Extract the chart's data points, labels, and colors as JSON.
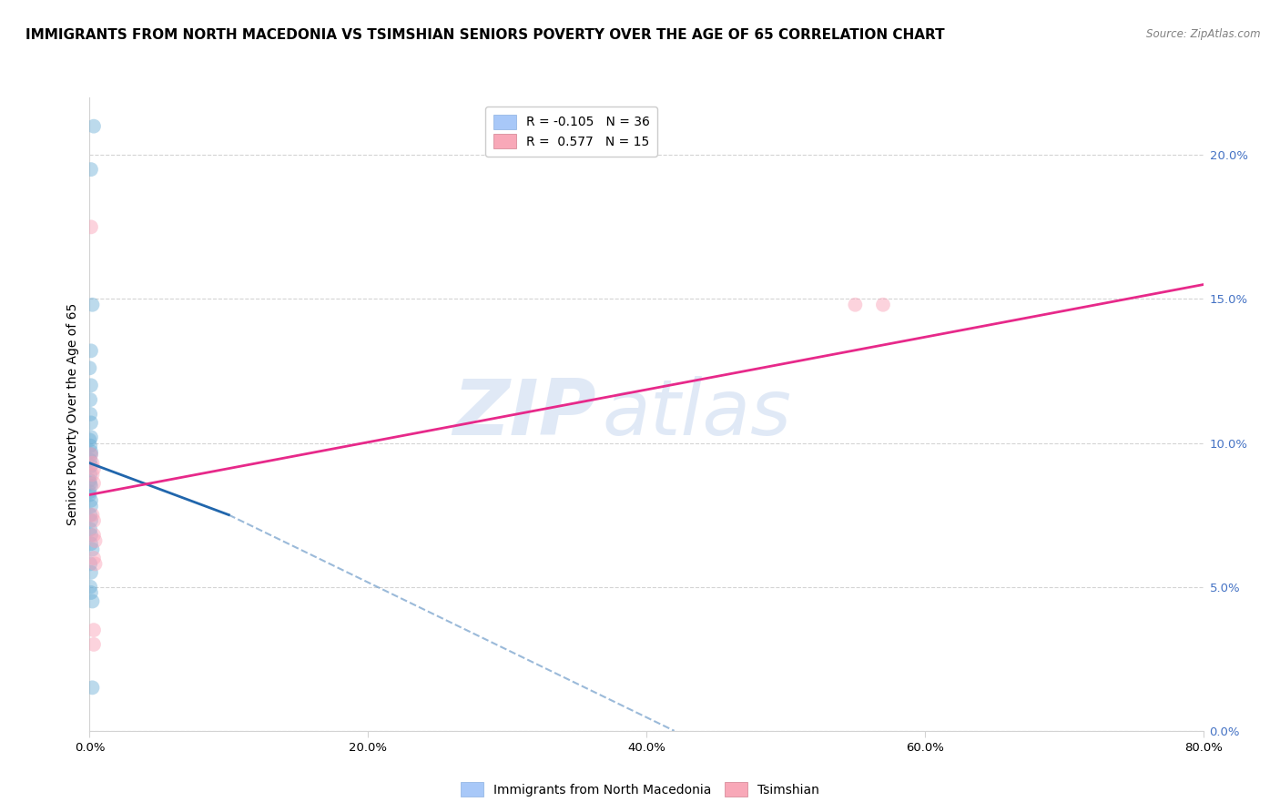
{
  "title": "IMMIGRANTS FROM NORTH MACEDONIA VS TSIMSHIAN SENIORS POVERTY OVER THE AGE OF 65 CORRELATION CHART",
  "source": "Source: ZipAtlas.com",
  "ylabel_label": "Seniors Poverty Over the Age of 65",
  "xlim": [
    0.0,
    0.8
  ],
  "ylim": [
    0.0,
    0.22
  ],
  "plot_ylim": [
    0.0,
    0.22
  ],
  "watermark_zip": "ZIP",
  "watermark_atlas": "atlas",
  "blue_scatter": [
    [
      0.003,
      0.21
    ],
    [
      0.001,
      0.195
    ],
    [
      0.002,
      0.148
    ],
    [
      0.001,
      0.132
    ],
    [
      0.0,
      0.126
    ],
    [
      0.001,
      0.12
    ],
    [
      0.0005,
      0.115
    ],
    [
      0.0005,
      0.11
    ],
    [
      0.001,
      0.107
    ],
    [
      0.001,
      0.102
    ],
    [
      0.0,
      0.101
    ],
    [
      0.0005,
      0.099
    ],
    [
      0.001,
      0.097
    ],
    [
      0.001,
      0.096
    ],
    [
      0.0005,
      0.094
    ],
    [
      0.001,
      0.092
    ],
    [
      0.0005,
      0.089
    ],
    [
      0.0,
      0.087
    ],
    [
      0.0005,
      0.086
    ],
    [
      0.001,
      0.085
    ],
    [
      0.0,
      0.083
    ],
    [
      0.0,
      0.082
    ],
    [
      0.001,
      0.08
    ],
    [
      0.001,
      0.078
    ],
    [
      0.0005,
      0.075
    ],
    [
      0.001,
      0.073
    ],
    [
      0.0005,
      0.07
    ],
    [
      0.001,
      0.068
    ],
    [
      0.001,
      0.065
    ],
    [
      0.002,
      0.063
    ],
    [
      0.0005,
      0.058
    ],
    [
      0.001,
      0.055
    ],
    [
      0.0005,
      0.05
    ],
    [
      0.001,
      0.048
    ],
    [
      0.002,
      0.045
    ],
    [
      0.002,
      0.015
    ]
  ],
  "pink_scatter": [
    [
      0.001,
      0.175
    ],
    [
      0.001,
      0.096
    ],
    [
      0.002,
      0.093
    ],
    [
      0.003,
      0.091
    ],
    [
      0.002,
      0.089
    ],
    [
      0.003,
      0.086
    ],
    [
      0.002,
      0.075
    ],
    [
      0.003,
      0.073
    ],
    [
      0.003,
      0.068
    ],
    [
      0.004,
      0.066
    ],
    [
      0.003,
      0.06
    ],
    [
      0.004,
      0.058
    ],
    [
      0.003,
      0.035
    ],
    [
      0.003,
      0.03
    ],
    [
      0.55,
      0.148
    ],
    [
      0.57,
      0.148
    ]
  ],
  "blue_line_solid": [
    [
      0.0,
      0.093
    ],
    [
      0.1,
      0.075
    ]
  ],
  "blue_line_dashed": [
    [
      0.1,
      0.075
    ],
    [
      0.42,
      0.0
    ]
  ],
  "pink_line": [
    [
      0.0,
      0.082
    ],
    [
      0.8,
      0.155
    ]
  ],
  "blue_color": "#6baed6",
  "pink_color": "#fa9fb5",
  "blue_line_color": "#2166ac",
  "pink_line_color": "#e7298a",
  "title_fontsize": 11,
  "axis_label_fontsize": 10,
  "tick_fontsize": 9.5,
  "marker_size": 130,
  "alpha": 0.45,
  "right_tick_color": "#4472c4",
  "grid_color": "#d0d0d0",
  "source_color": "#808080"
}
